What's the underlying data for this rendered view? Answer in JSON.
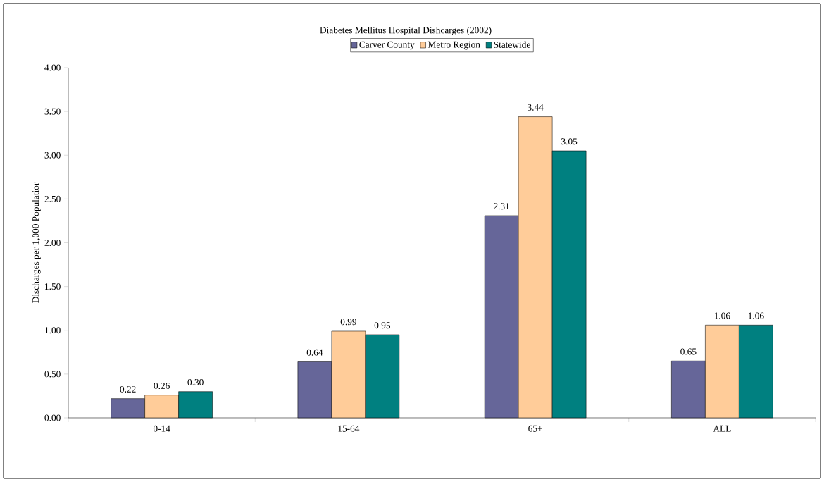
{
  "chart_data": {
    "type": "bar",
    "title": "Diabetes Mellitus Hospital Dishcarges (2002)",
    "ylabel": "Discharges per 1,000 Populatior",
    "categories": [
      "0-14",
      "15-64",
      "65+",
      "ALL"
    ],
    "series": [
      {
        "name": "Carver County",
        "color": "#666699",
        "values": [
          0.22,
          0.64,
          2.31,
          0.65
        ],
        "value_labels": [
          "0.22",
          "0.64",
          "2.31",
          "0.65"
        ]
      },
      {
        "name": "Metro Region",
        "color": "#ffcc99",
        "values": [
          0.26,
          0.99,
          3.44,
          1.06
        ],
        "value_labels": [
          "0.26",
          "0.99",
          "3.44",
          "1.06"
        ]
      },
      {
        "name": "Statewide",
        "color": "#008080",
        "values": [
          0.3,
          0.95,
          3.05,
          1.06
        ],
        "value_labels": [
          "0.30",
          "0.95",
          "3.05",
          "1.06"
        ]
      }
    ],
    "ylim": [
      0,
      4
    ],
    "yticks": [
      {
        "value": 0,
        "label": "0.00"
      },
      {
        "value": 0.5,
        "label": "0.50"
      },
      {
        "value": 1,
        "label": "1.00"
      },
      {
        "value": 1.5,
        "label": "1.50"
      },
      {
        "value": 2,
        "label": "2.00"
      },
      {
        "value": 2.5,
        "label": "2.50"
      },
      {
        "value": 3,
        "label": "3.00"
      },
      {
        "value": 3.5,
        "label": "3.50"
      },
      {
        "value": 4,
        "label": "4.00"
      }
    ],
    "legend": "top",
    "grid": false
  }
}
